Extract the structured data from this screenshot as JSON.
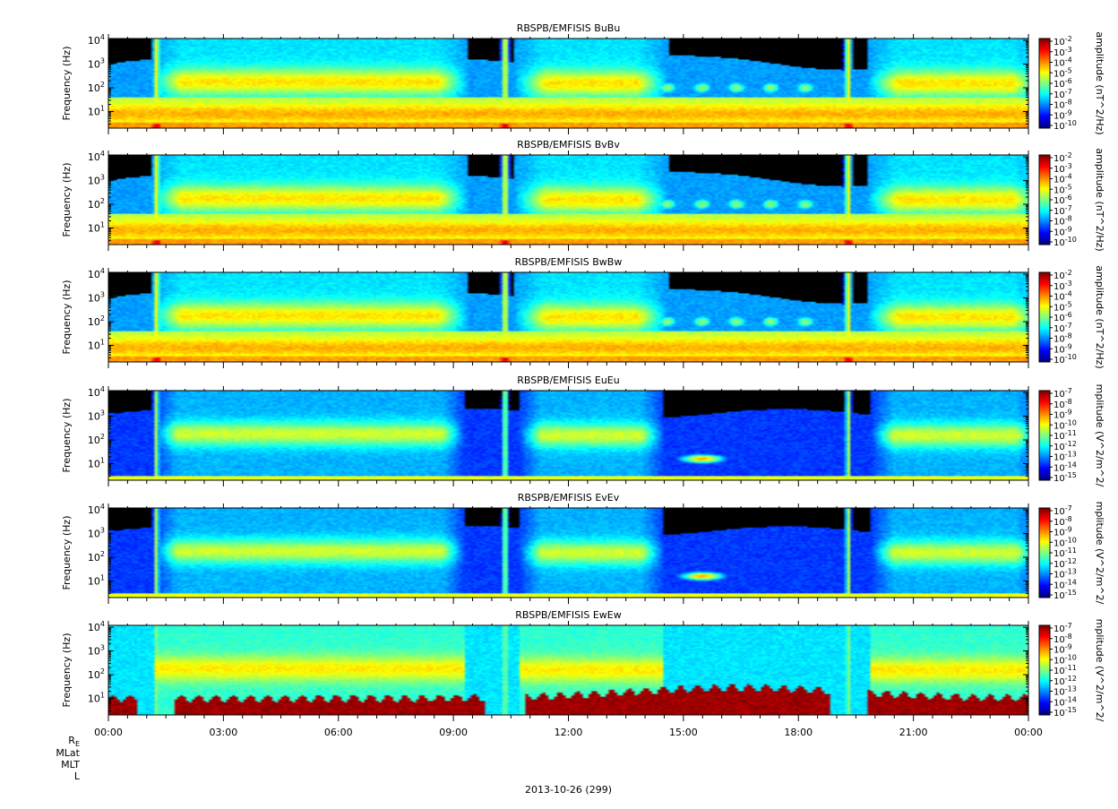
{
  "chart_data": {
    "type": "heatmap",
    "date_label": "2013-10-26 (299)",
    "ephemeris_labels": [
      "R_E",
      "MLat",
      "MLT",
      "L"
    ],
    "x": {
      "ticks": [
        "00:00",
        "03:00",
        "06:00",
        "09:00",
        "12:00",
        "15:00",
        "18:00",
        "21:00",
        "00:00"
      ],
      "range_hours": [
        0,
        24
      ]
    },
    "panels": [
      {
        "title": "RBSPB/EMFISIS  BuBu",
        "ylabel": "Frequency (Hz)",
        "yscale": "log",
        "yrange": [
          2,
          12000
        ],
        "colorbar_label": "amplitude (nT^2/Hz)",
        "colorbar_ticks": [
          "10-2",
          "10-3",
          "10-4",
          "10-5",
          "10-6",
          "10-7",
          "10-8",
          "10-9",
          "10-10"
        ],
        "zlog_range": [
          -10,
          -2
        ]
      },
      {
        "title": "RBSPB/EMFISIS  BvBv",
        "ylabel": "Frequency (Hz)",
        "yscale": "log",
        "yrange": [
          2,
          12000
        ],
        "colorbar_label": "amplitude (nT^2/Hz)",
        "colorbar_ticks": [
          "10-2",
          "10-3",
          "10-4",
          "10-5",
          "10-6",
          "10-7",
          "10-8",
          "10-9",
          "10-10"
        ],
        "zlog_range": [
          -10,
          -2
        ]
      },
      {
        "title": "RBSPB/EMFISIS  BwBw",
        "ylabel": "Frequency (Hz)",
        "yscale": "log",
        "yrange": [
          2,
          12000
        ],
        "colorbar_label": "amplitude (nT^2/Hz)",
        "colorbar_ticks": [
          "10-2",
          "10-3",
          "10-4",
          "10-5",
          "10-6",
          "10-7",
          "10-8",
          "10-9",
          "10-10"
        ],
        "zlog_range": [
          -10,
          -2
        ]
      },
      {
        "title": "RBSPB/EMFISIS  EuEu",
        "ylabel": "Frequency (Hz)",
        "yscale": "log",
        "yrange": [
          2,
          12000
        ],
        "colorbar_label": "mplitude (V^2/m^2/",
        "colorbar_ticks": [
          "10-7",
          "10-8",
          "10-9",
          "10-10",
          "10-11",
          "10-12",
          "10-13",
          "10-14",
          "10-15"
        ],
        "zlog_range": [
          -15,
          -7
        ]
      },
      {
        "title": "RBSPB/EMFISIS  EvEv",
        "ylabel": "Frequency (Hz)",
        "yscale": "log",
        "yrange": [
          2,
          12000
        ],
        "colorbar_label": "mplitude (V^2/m^2/",
        "colorbar_ticks": [
          "10-7",
          "10-8",
          "10-9",
          "10-10",
          "10-11",
          "10-12",
          "10-13",
          "10-14",
          "10-15"
        ],
        "zlog_range": [
          -15,
          -7
        ]
      },
      {
        "title": "RBSPB/EMFISIS  EwEw",
        "ylabel": "Frequency (Hz)",
        "yscale": "log",
        "yrange": [
          2,
          12000
        ],
        "colorbar_label": "mplitude (V^2/m^2/",
        "colorbar_ticks": [
          "10-7",
          "10-8",
          "10-9",
          "10-10",
          "10-11",
          "10-12",
          "10-13",
          "10-14",
          "10-15"
        ],
        "zlog_range": [
          -15,
          -7
        ]
      }
    ],
    "y_ticks": [
      "10^4",
      "10^3",
      "10^2",
      "10^1"
    ],
    "features": {
      "spike_times_hours": [
        1.25,
        10.35,
        19.3
      ],
      "hiss_bands": [
        {
          "t_start": 1.5,
          "t_end": 9.0,
          "f_low": 40,
          "f_high": 800
        },
        {
          "t_start": 11.0,
          "t_end": 14.2,
          "f_low": 40,
          "f_high": 600
        },
        {
          "t_start": 20.2,
          "t_end": 24.0,
          "f_low": 40,
          "f_high": 600
        }
      ]
    }
  }
}
